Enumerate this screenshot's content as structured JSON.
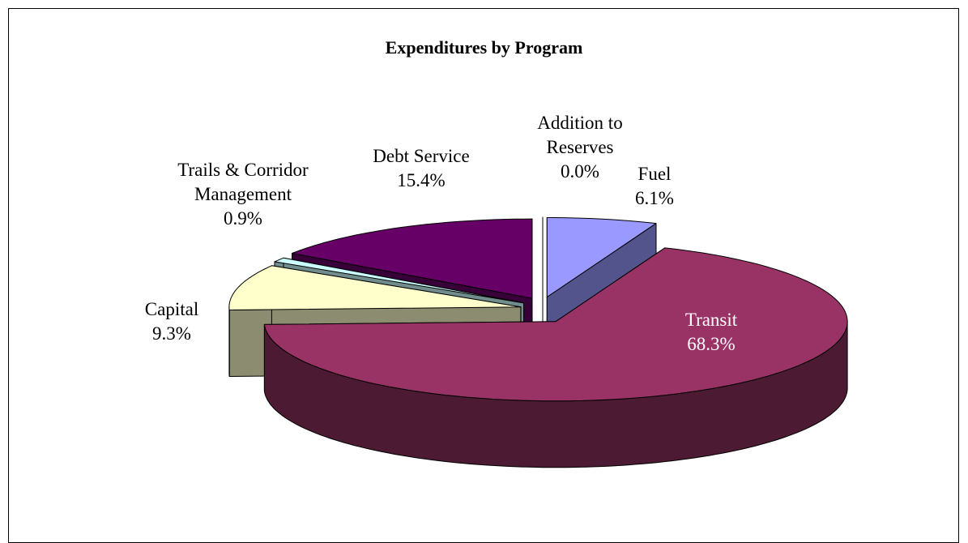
{
  "chart_data": {
    "type": "pie",
    "title": "Expenditures by Program",
    "categories": [
      "Fuel",
      "Transit",
      "Capital",
      "Trails & Corridor Management",
      "Debt Service",
      "Addition to Reserves"
    ],
    "values": [
      6.1,
      68.3,
      9.3,
      0.9,
      15.4,
      0.0
    ],
    "value_labels": [
      "6.1%",
      "68.3%",
      "9.3%",
      "0.9%",
      "15.4%",
      "0.0%"
    ],
    "colors": [
      "#9999ff",
      "#993366",
      "#ffffcc",
      "#ccffff",
      "#660066",
      "#ffffff"
    ]
  }
}
